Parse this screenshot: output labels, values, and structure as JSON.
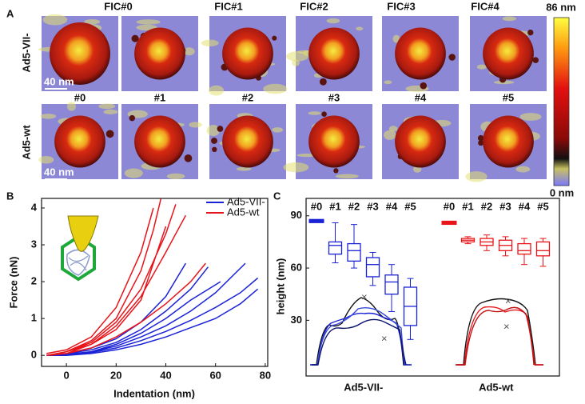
{
  "panel_a": {
    "label": "A",
    "columns_top": [
      "FIC#0",
      "FIC#1",
      "FIC#2",
      "FIC#3",
      "FIC#4"
    ],
    "columns_bottom": [
      "#0",
      "#1",
      "#2",
      "#3",
      "#4",
      "#5"
    ],
    "rows": [
      "Ad5-VII-",
      "Ad5-wt"
    ],
    "scale_bar": "40 nm",
    "colorbar": {
      "max_label": "86 nm",
      "min_label": "0 nm"
    }
  },
  "chart_data": [
    {
      "panel": "B",
      "type": "line",
      "xlabel": "Indentation (nm)",
      "ylabel": "Force (nN)",
      "xlim": [
        -10,
        81
      ],
      "xticks": [
        0,
        20,
        40,
        60,
        80
      ],
      "ylim": [
        -0.3,
        4.26
      ],
      "yticks": [
        0,
        1,
        2,
        3,
        4
      ],
      "legend": "upper right",
      "series": [
        {
          "name": "Ad5-VII-",
          "color": "#1a22d6",
          "x": [
            -8,
            0,
            10,
            20,
            30,
            40,
            48,
            null,
            -8,
            0,
            10,
            20,
            30,
            40,
            50,
            57,
            null,
            -6,
            0,
            10,
            20,
            30,
            40,
            50,
            62,
            null,
            -8,
            0,
            10,
            20,
            30,
            40,
            50,
            60,
            72,
            null,
            -8,
            0,
            10,
            20,
            30,
            40,
            50,
            60,
            70,
            77,
            null,
            -8,
            0,
            10,
            20,
            30,
            40,
            50,
            60,
            70,
            77
          ],
          "values": [
            0,
            0.05,
            0.2,
            0.45,
            0.9,
            1.6,
            2.5,
            null,
            0,
            0.05,
            0.15,
            0.35,
            0.7,
            1.2,
            1.8,
            2.4,
            null,
            0,
            0.03,
            0.1,
            0.3,
            0.6,
            1.0,
            1.5,
            2.0,
            null,
            0,
            0.02,
            0.1,
            0.25,
            0.5,
            0.8,
            1.2,
            1.7,
            2.5,
            null,
            0,
            0.02,
            0.08,
            0.2,
            0.4,
            0.65,
            0.95,
            1.3,
            1.7,
            2.1,
            null,
            0,
            0,
            0.05,
            0.15,
            0.3,
            0.5,
            0.75,
            1.0,
            1.4,
            1.8
          ]
        },
        {
          "name": "Ad5-wt",
          "color": "#e8141a",
          "x": [
            -8,
            0,
            10,
            20,
            30,
            35,
            38,
            null,
            -8,
            0,
            10,
            20,
            30,
            35,
            null,
            -8,
            0,
            10,
            20,
            30,
            40,
            44,
            null,
            -6,
            0,
            10,
            20,
            30,
            40,
            48,
            null,
            -8,
            0,
            10,
            20,
            30,
            40,
            null,
            -8,
            0,
            10,
            20,
            30,
            40,
            50,
            56
          ],
          "values": [
            0,
            0.1,
            0.4,
            1.0,
            2.3,
            3.4,
            4.25,
            null,
            0.05,
            0.15,
            0.5,
            1.3,
            2.8,
            4.0,
            null,
            0,
            0.1,
            0.35,
            0.9,
            1.8,
            3.3,
            4.1,
            null,
            0,
            0.1,
            0.3,
            0.8,
            1.6,
            2.8,
            3.8,
            null,
            0,
            0.05,
            0.3,
            0.7,
            1.5,
            3.5,
            null,
            0,
            0.05,
            0.2,
            0.5,
            0.9,
            1.4,
            2.0,
            2.5
          ]
        }
      ]
    },
    {
      "panel": "C",
      "type": "box",
      "ylabel": "height (nm)",
      "categories": [
        "#0",
        "#1",
        "#2",
        "#3",
        "#4",
        "#5"
      ],
      "ylim": [
        -2,
        100
      ],
      "yticks": [
        30,
        60,
        90
      ],
      "series": [
        {
          "name": "Ad5-VII-",
          "color": "#1a22d6",
          "boxes": [
            {
              "min": 86,
              "q1": 86.5,
              "median": 87,
              "q3": 87.5,
              "max": 88
            },
            {
              "min": 63,
              "q1": 68,
              "median": 73,
              "q3": 75,
              "max": 86
            },
            {
              "min": 60,
              "q1": 64,
              "median": 70,
              "q3": 74,
              "max": 85
            },
            {
              "min": 50,
              "q1": 55,
              "median": 62,
              "q3": 66,
              "max": 69
            },
            {
              "min": 35,
              "q1": 45,
              "median": 52,
              "q3": 56,
              "max": 62
            },
            {
              "min": 19,
              "q1": 27,
              "median": 38,
              "q3": 49,
              "max": 54
            }
          ]
        },
        {
          "name": "Ad5-wt",
          "color": "#e8141a",
          "boxes": [
            {
              "min": 85,
              "q1": 85.5,
              "median": 86,
              "q3": 86.5,
              "max": 87
            },
            {
              "min": 74,
              "q1": 75,
              "median": 76,
              "q3": 77,
              "max": 78
            },
            {
              "min": 70,
              "q1": 73,
              "median": 75,
              "q3": 77,
              "max": 79
            },
            {
              "min": 67,
              "q1": 70,
              "median": 73,
              "q3": 76,
              "max": 78
            },
            {
              "min": 62,
              "q1": 68,
              "median": 70,
              "q3": 74,
              "max": 77
            },
            {
              "min": 61,
              "q1": 67,
              "median": 70,
              "q3": 75,
              "max": 77
            }
          ]
        }
      ]
    }
  ]
}
